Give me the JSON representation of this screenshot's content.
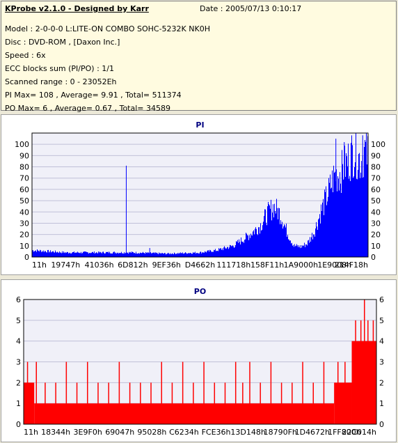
{
  "header": {
    "title": "KProbe v2.1.0 - Designed by Karr",
    "date": "Date : 2005/07/13 0:10:17",
    "lines": [
      "Model : 2-0-0-0 L:LITE-ON COMBO SOHC-5232K NK0H",
      "Disc : DVD-ROM ,  [Daxon Inc.]",
      "Speed : 6x",
      "ECC blocks sum (PI/PO) : 1/1",
      "Scanned range : 0 - 23052Eh",
      "PI Max= 108 , Average= 9.91 , Total= 511374",
      "PO Max= 6 , Average= 0.67 , Total= 34589"
    ]
  },
  "colors": {
    "pi": "#0000ff",
    "po": "#ff0000",
    "grid": "#c0c0d8",
    "plot_bg": "#f0f0f8"
  },
  "chart_data": [
    {
      "type": "area",
      "title": "PI",
      "ylim": [
        0,
        110
      ],
      "yticks": [
        0,
        10,
        20,
        30,
        40,
        50,
        60,
        70,
        80,
        90,
        100
      ],
      "x_tick_labels": [
        "11h",
        "19747h",
        "41036h",
        "6D812h",
        "9EF36h",
        "D4662h",
        "111718h",
        "158F11h",
        "1A9000h",
        "1E9008h",
        "214F18h"
      ],
      "profile_x": [
        0.0,
        0.05,
        0.1,
        0.2,
        0.3,
        0.4,
        0.5,
        0.55,
        0.6,
        0.64,
        0.68,
        0.7,
        0.72,
        0.74,
        0.76,
        0.78,
        0.8,
        0.82,
        0.84,
        0.86,
        0.88,
        0.9,
        0.92,
        0.94,
        0.96,
        0.97,
        0.98,
        0.99,
        1.0
      ],
      "profile_y": [
        6,
        5,
        4,
        4,
        4,
        3,
        4,
        6,
        10,
        18,
        28,
        38,
        45,
        38,
        22,
        10,
        9,
        12,
        22,
        40,
        55,
        72,
        75,
        85,
        95,
        90,
        85,
        95,
        90
      ],
      "spikes": [
        {
          "x": 0.28,
          "y": 81
        },
        {
          "x": 0.35,
          "y": 8
        },
        {
          "x": 0.905,
          "y": 105
        },
        {
          "x": 0.93,
          "y": 102
        },
        {
          "x": 0.985,
          "y": 108
        }
      ]
    },
    {
      "type": "bar",
      "title": "PO",
      "ylim": [
        0,
        6
      ],
      "yticks": [
        0,
        1,
        2,
        3,
        4,
        5,
        6
      ],
      "x_tick_labels": [
        "11h",
        "18344h",
        "3E9F0h",
        "69047h",
        "95028h",
        "C6234h",
        "FCE36h",
        "13D148h",
        "18790Fh",
        "1D4672h",
        "1FF800h",
        "22C014h"
      ],
      "baseline_segments": [
        {
          "from": 0.0,
          "to": 0.03,
          "value": 2
        },
        {
          "from": 0.03,
          "to": 0.88,
          "value": 1
        },
        {
          "from": 0.88,
          "to": 0.93,
          "value": 2
        },
        {
          "from": 0.93,
          "to": 1.0,
          "value": 4
        }
      ],
      "spikes": [
        {
          "x": 0.01,
          "y": 3
        },
        {
          "x": 0.035,
          "y": 3
        },
        {
          "x": 0.06,
          "y": 2
        },
        {
          "x": 0.09,
          "y": 2
        },
        {
          "x": 0.12,
          "y": 3
        },
        {
          "x": 0.15,
          "y": 2
        },
        {
          "x": 0.18,
          "y": 3
        },
        {
          "x": 0.21,
          "y": 2
        },
        {
          "x": 0.24,
          "y": 2
        },
        {
          "x": 0.27,
          "y": 3
        },
        {
          "x": 0.3,
          "y": 2
        },
        {
          "x": 0.33,
          "y": 2
        },
        {
          "x": 0.36,
          "y": 2
        },
        {
          "x": 0.39,
          "y": 3
        },
        {
          "x": 0.42,
          "y": 2
        },
        {
          "x": 0.45,
          "y": 3
        },
        {
          "x": 0.48,
          "y": 2
        },
        {
          "x": 0.51,
          "y": 3
        },
        {
          "x": 0.54,
          "y": 2
        },
        {
          "x": 0.57,
          "y": 2
        },
        {
          "x": 0.6,
          "y": 3
        },
        {
          "x": 0.62,
          "y": 2
        },
        {
          "x": 0.64,
          "y": 3
        },
        {
          "x": 0.67,
          "y": 2
        },
        {
          "x": 0.7,
          "y": 3
        },
        {
          "x": 0.73,
          "y": 2
        },
        {
          "x": 0.76,
          "y": 2
        },
        {
          "x": 0.79,
          "y": 3
        },
        {
          "x": 0.82,
          "y": 2
        },
        {
          "x": 0.85,
          "y": 3
        },
        {
          "x": 0.89,
          "y": 3
        },
        {
          "x": 0.91,
          "y": 3
        },
        {
          "x": 0.94,
          "y": 5
        },
        {
          "x": 0.955,
          "y": 5
        },
        {
          "x": 0.965,
          "y": 6
        },
        {
          "x": 0.975,
          "y": 5
        },
        {
          "x": 0.99,
          "y": 5
        }
      ]
    }
  ]
}
